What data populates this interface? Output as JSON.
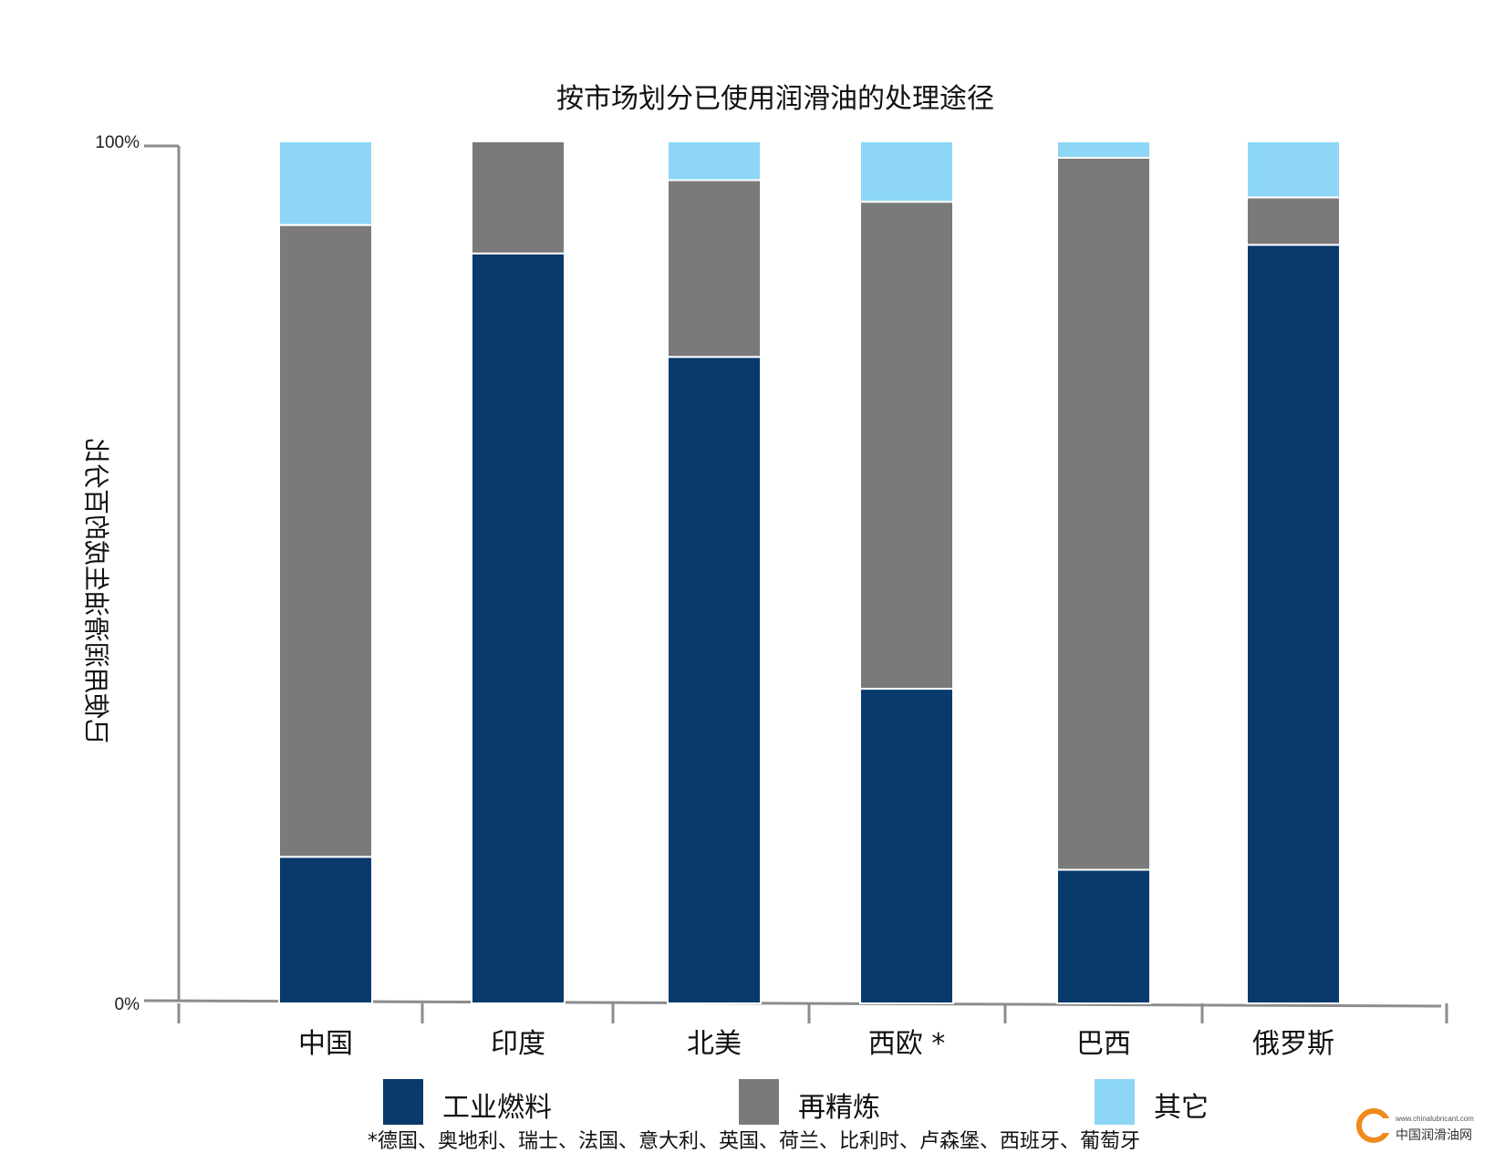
{
  "chart_data": {
    "type": "bar",
    "stacked": true,
    "title": "按市场划分已使用润滑油的处理途径",
    "ylabel": "已使用润滑油生成的百分比",
    "ytick_labels": [
      "0%",
      "100%"
    ],
    "ylim": [
      0,
      100
    ],
    "categories": [
      "中国",
      "印度",
      "北美",
      "西欧 *",
      "巴西",
      "俄罗斯"
    ],
    "series": [
      {
        "name": "工业燃料",
        "color": "#083a6b",
        "values": [
          17,
          87,
          75,
          36.5,
          15.5,
          88
        ]
      },
      {
        "name": "再精炼",
        "color": "#7a7a7a",
        "values": [
          73.3,
          13,
          20.5,
          56.5,
          82.6,
          5.5
        ]
      },
      {
        "name": "其它",
        "color": "#8dd6f5",
        "values": [
          9.7,
          0,
          4.5,
          7,
          1.9,
          6.5
        ]
      }
    ],
    "grid": false,
    "legend_position": "bottom"
  },
  "footnote": "*德国、奥地利、瑞士、法国、意大利、英国、荷兰、比利时、卢森堡、西班牙、葡萄牙",
  "watermark": {
    "url": "www.chinalubricant.com",
    "name": "中国润滑油网",
    "accent": "#f08a1c"
  }
}
